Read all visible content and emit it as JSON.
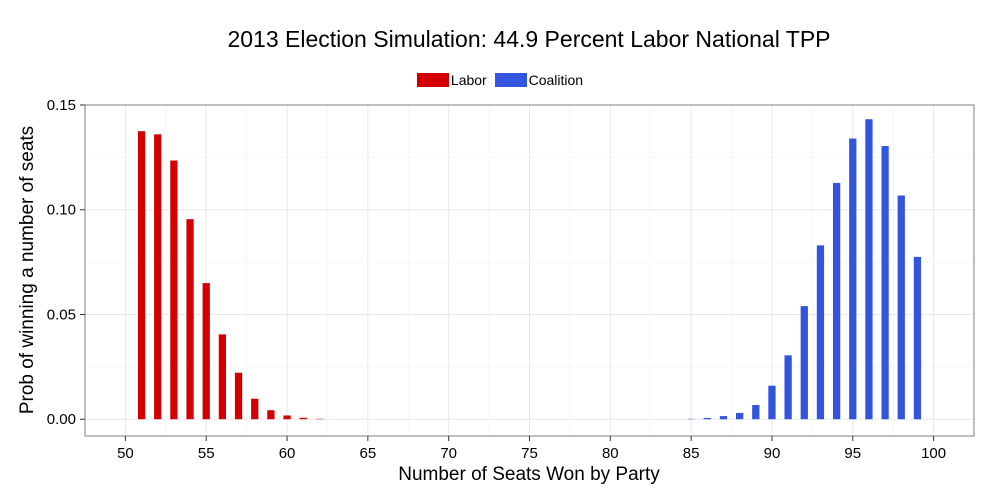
{
  "chart_data": {
    "type": "bar",
    "title": "2013 Election Simulation: 44.9 Percent Labor National TPP",
    "xlabel": "Number of Seats Won by Party",
    "ylabel": "Prob of winning a number of seats",
    "xlim": [
      47.5,
      102.5
    ],
    "ylim": [
      -0.008,
      0.15
    ],
    "x_ticks": [
      50,
      55,
      60,
      65,
      70,
      75,
      80,
      85,
      90,
      95,
      100
    ],
    "y_ticks": [
      0.0,
      0.05,
      0.1,
      0.15
    ],
    "y_tick_labels": [
      "0.00",
      "0.05",
      "0.10",
      "0.15"
    ],
    "grid": true,
    "legend_position": "top",
    "series": [
      {
        "name": "Labor",
        "color": "#d40000",
        "x": [
          51,
          52,
          53,
          54,
          55,
          56,
          57,
          58,
          59,
          60,
          61,
          62
        ],
        "values": [
          0.1375,
          0.136,
          0.1235,
          0.0955,
          0.065,
          0.0405,
          0.0222,
          0.0098,
          0.0043,
          0.0018,
          0.0007,
          0.0002
        ]
      },
      {
        "name": "Coalition",
        "color": "#3355dd",
        "x": [
          85,
          86,
          87,
          88,
          89,
          90,
          91,
          92,
          93,
          94,
          95,
          96,
          97,
          98,
          99
        ],
        "values": [
          0.0002,
          0.0006,
          0.0015,
          0.003,
          0.0068,
          0.016,
          0.0305,
          0.054,
          0.083,
          0.1128,
          0.134,
          0.1432,
          0.1304,
          0.1068,
          0.0775
        ]
      }
    ]
  }
}
